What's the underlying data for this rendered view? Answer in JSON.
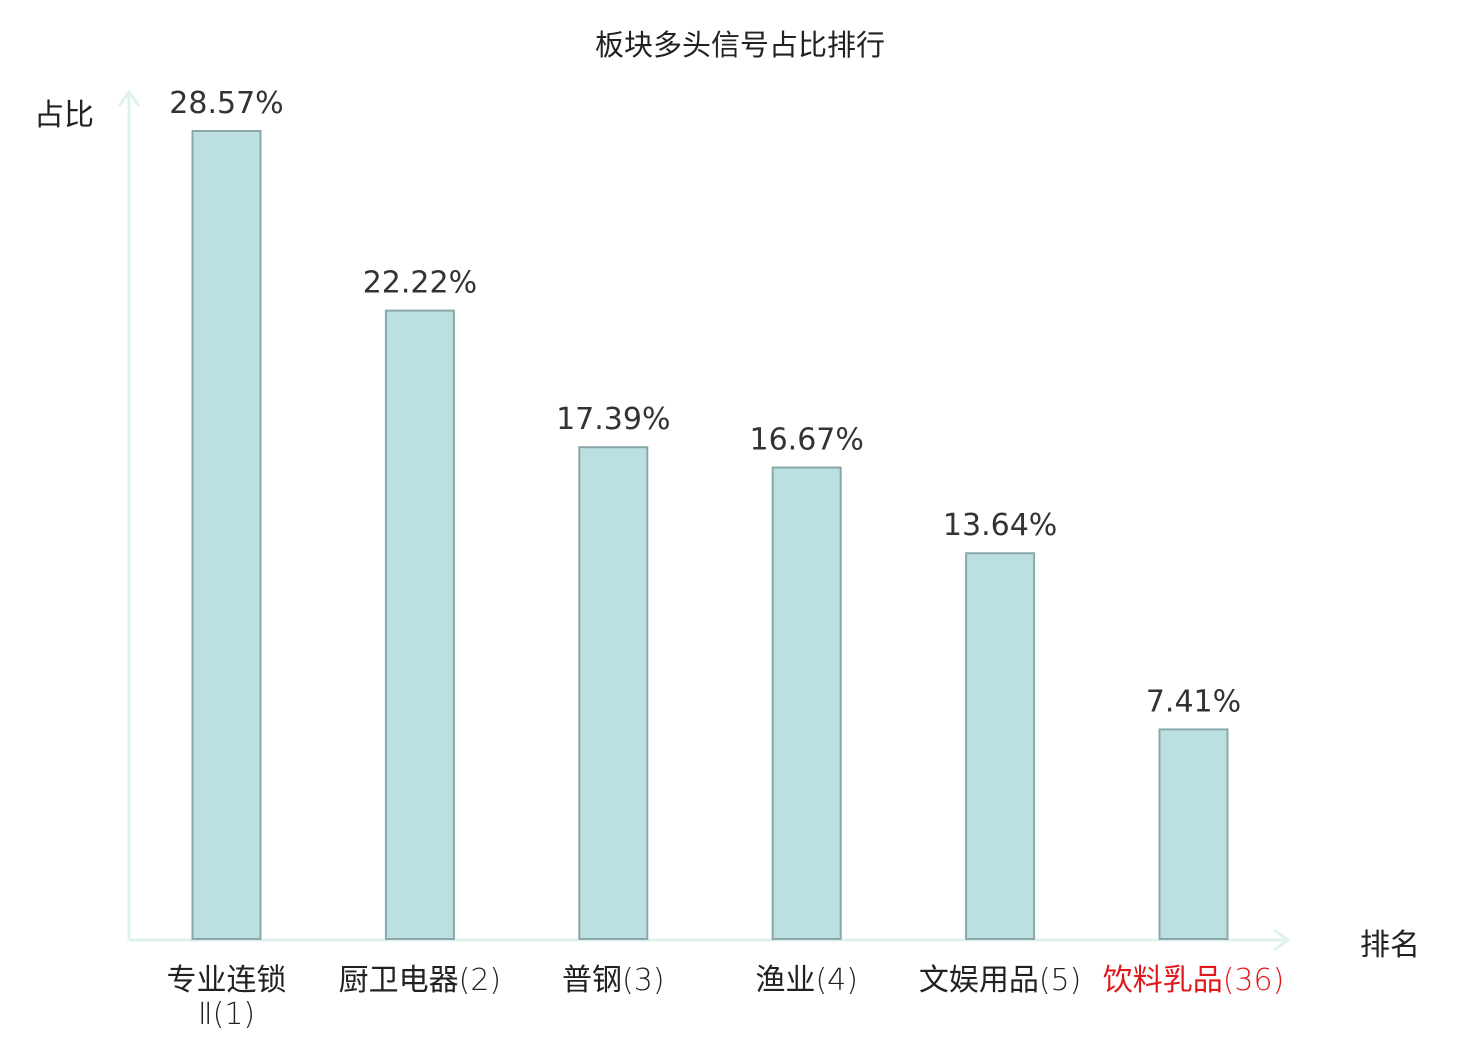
{
  "chart_data": {
    "type": "bar",
    "title": "板块多头信号占比排行",
    "ylabel": "占比",
    "xlabel": "排名",
    "ylim": [
      0,
      30
    ],
    "grid": false,
    "categories": [
      {
        "name": "专业连锁",
        "name_line2": "Ⅱ",
        "rank": "(1)",
        "highlight": false
      },
      {
        "name": "厨卫电器",
        "name_line2": "",
        "rank": "(2)",
        "highlight": false
      },
      {
        "name": "普钢",
        "name_line2": "",
        "rank": "(3)",
        "highlight": false
      },
      {
        "name": "渔业",
        "name_line2": "",
        "rank": "(4)",
        "highlight": false
      },
      {
        "name": "文娱用品",
        "name_line2": "",
        "rank": "(5)",
        "highlight": false
      },
      {
        "name": "饮料乳品",
        "name_line2": "",
        "rank": "(36)",
        "highlight": true
      }
    ],
    "values": [
      28.57,
      22.22,
      17.39,
      16.67,
      13.64,
      7.41
    ],
    "value_labels": [
      "28.57%",
      "22.22%",
      "17.39%",
      "16.67%",
      "13.64%",
      "7.41%"
    ]
  },
  "colors": {
    "bar_fill": "#bce0e2",
    "bar_stroke": "#8aa7a9",
    "axis": "#e0f2ef",
    "highlight": "#e0191d",
    "text": "#222222"
  }
}
